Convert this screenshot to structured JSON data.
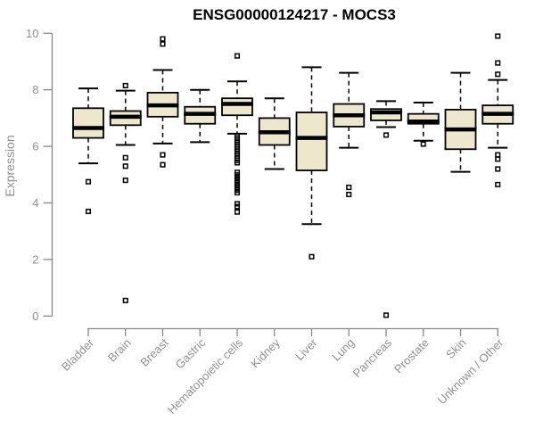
{
  "chart_data": {
    "type": "boxplot",
    "title": "ENSG00000124217 - MOCS3",
    "ylabel": "Expression",
    "xlabel": "",
    "ylim": [
      0,
      10
    ],
    "yticks": [
      0,
      2,
      4,
      6,
      8,
      10
    ],
    "grid": false,
    "legend": "none",
    "colors": {
      "box_fill": "#EDE7CC",
      "box_stroke": "#000000",
      "median": "#000000",
      "whisker": "#000000",
      "axis": "#888888",
      "labels": "#909090",
      "title": "#000000",
      "background": "#FFFFFF"
    },
    "categories": [
      "Bladder",
      "Brain",
      "Breast",
      "Gastric",
      "Hematopoietic cells",
      "Kidney",
      "Liver",
      "Lung",
      "Pancreas",
      "Prostate",
      "Skin",
      "Unknown / Other"
    ],
    "series": [
      {
        "category": "Bladder",
        "low": 5.4,
        "q1": 6.3,
        "median": 6.65,
        "q3": 7.35,
        "high": 8.05,
        "outliers": [
          4.75,
          3.7
        ]
      },
      {
        "category": "Brain",
        "low": 6.05,
        "q1": 6.75,
        "median": 7.05,
        "q3": 7.25,
        "high": 7.97,
        "outliers": [
          8.15,
          5.6,
          5.3,
          4.8,
          0.55
        ]
      },
      {
        "category": "Breast",
        "low": 6.1,
        "q1": 7.05,
        "median": 7.45,
        "q3": 7.9,
        "high": 8.7,
        "outliers": [
          9.8,
          9.62,
          5.7,
          5.35
        ]
      },
      {
        "category": "Gastric",
        "low": 6.15,
        "q1": 6.8,
        "median": 7.15,
        "q3": 7.4,
        "high": 8.0,
        "outliers": []
      },
      {
        "category": "Hematopoietic cells",
        "low": 6.45,
        "q1": 7.1,
        "median": 7.5,
        "q3": 7.7,
        "high": 8.3,
        "outliers": [
          9.2,
          6.38,
          6.3,
          6.22,
          6.14,
          6.06,
          5.98,
          5.9,
          5.82,
          5.74,
          5.66,
          5.58,
          5.5,
          5.42,
          5.08,
          4.99,
          4.9,
          4.81,
          4.72,
          4.63,
          4.54,
          4.45,
          4.36,
          3.97,
          3.87,
          3.68
        ]
      },
      {
        "category": "Kidney",
        "low": 5.2,
        "q1": 6.05,
        "median": 6.5,
        "q3": 7.0,
        "high": 7.7,
        "outliers": []
      },
      {
        "category": "Liver",
        "low": 3.25,
        "q1": 5.15,
        "median": 6.3,
        "q3": 7.2,
        "high": 8.8,
        "outliers": [
          2.1
        ]
      },
      {
        "category": "Lung",
        "low": 5.95,
        "q1": 6.7,
        "median": 7.1,
        "q3": 7.5,
        "high": 8.6,
        "outliers": [
          4.55,
          4.3
        ]
      },
      {
        "category": "Pancreas",
        "low": 6.68,
        "q1": 6.92,
        "median": 7.2,
        "q3": 7.32,
        "high": 7.6,
        "outliers": [
          6.4,
          0.03
        ]
      },
      {
        "category": "Prostate",
        "low": 6.2,
        "q1": 6.8,
        "median": 6.88,
        "q3": 7.15,
        "high": 7.55,
        "outliers": [
          6.08
        ]
      },
      {
        "category": "Skin",
        "low": 5.1,
        "q1": 5.9,
        "median": 6.6,
        "q3": 7.3,
        "high": 8.6,
        "outliers": []
      },
      {
        "category": "Unknown / Other",
        "low": 5.95,
        "q1": 6.8,
        "median": 7.15,
        "q3": 7.45,
        "high": 8.35,
        "outliers": [
          9.9,
          8.95,
          8.55,
          5.7,
          5.55,
          5.2,
          4.65
        ]
      }
    ]
  }
}
